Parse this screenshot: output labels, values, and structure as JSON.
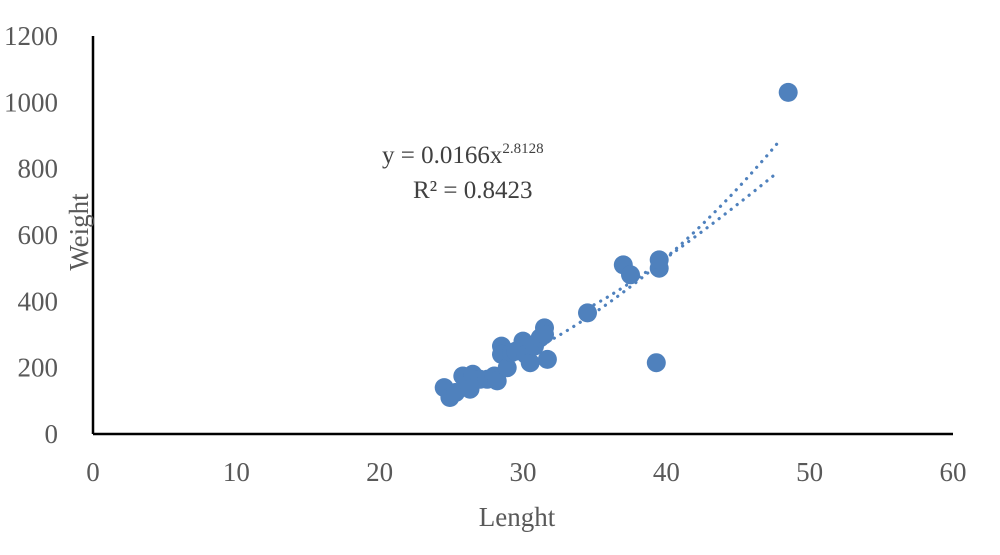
{
  "chart_data": {
    "type": "scatter",
    "title": "",
    "xlabel": "Lenght",
    "ylabel": "Weight",
    "xlim": [
      0,
      60
    ],
    "ylim": [
      0,
      1200
    ],
    "x_ticks": [
      "0",
      "10",
      "20",
      "30",
      "40",
      "50",
      "60"
    ],
    "y_ticks": [
      "0",
      "200",
      "400",
      "600",
      "800",
      "1000",
      "1200"
    ],
    "grid": false,
    "legend": "none",
    "marker_color": "#4f81bd",
    "trendline_color": "#4f81bd",
    "series": [
      {
        "points": [
          [
            24.5,
            140
          ],
          [
            24.9,
            110
          ],
          [
            25.3,
            125
          ],
          [
            25.8,
            175
          ],
          [
            26.2,
            150
          ],
          [
            26.5,
            180
          ],
          [
            26.3,
            135
          ],
          [
            27.0,
            165
          ],
          [
            27.5,
            165
          ],
          [
            28.0,
            175
          ],
          [
            28.2,
            160
          ],
          [
            28.5,
            265
          ],
          [
            28.5,
            240
          ],
          [
            28.9,
            200
          ],
          [
            29.2,
            245
          ],
          [
            29.5,
            250
          ],
          [
            30.0,
            280
          ],
          [
            30.2,
            240
          ],
          [
            30.5,
            215
          ],
          [
            30.8,
            265
          ],
          [
            31.2,
            290
          ],
          [
            31.5,
            320
          ],
          [
            31.5,
            300
          ],
          [
            31.7,
            225
          ],
          [
            34.5,
            365
          ],
          [
            37.0,
            510
          ],
          [
            37.5,
            480
          ],
          [
            39.3,
            215
          ],
          [
            39.5,
            500
          ],
          [
            39.5,
            525
          ],
          [
            48.5,
            1030
          ]
        ]
      }
    ],
    "trendlines": [
      {
        "kind": "power",
        "coef": 0.0166,
        "exponent": 2.8128,
        "x_range": [
          24.5,
          48.0
        ]
      },
      {
        "kind": "linear-ish",
        "x_range": [
          34.0,
          47.8
        ],
        "y_start": 370,
        "y_end": 790
      }
    ],
    "annotation": {
      "equation_prefix": "y = 0.0166x",
      "equation_exponent": "2.8128",
      "r_squared": "R² = 0.8423"
    }
  }
}
